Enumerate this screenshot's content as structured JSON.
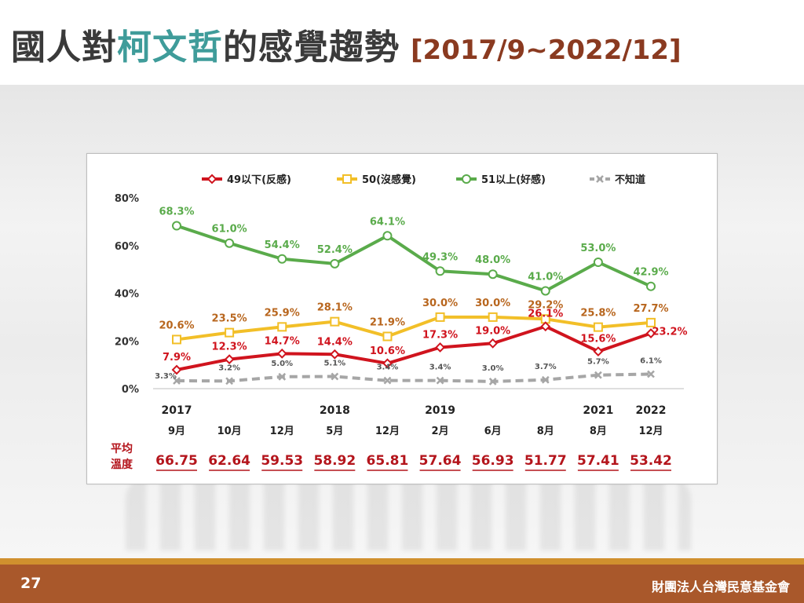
{
  "header": {
    "title_part1": "國人對",
    "title_highlight": "柯文哲",
    "title_part2": "的感覺趨勢",
    "date_range": "[2017/9~2022/12]"
  },
  "footer": {
    "page_number": "27",
    "organization": "財團法人台灣民意基金會"
  },
  "colors": {
    "negative": "#d0141e",
    "neutral": "#f2bf28",
    "positive": "#5aab4b",
    "unknown": "#a6a6a6",
    "neutral_label": "#b8661e",
    "temperature": "#b4151c",
    "title_highlight": "#3f9c9a"
  },
  "chart_data": {
    "type": "line",
    "ylim": [
      0,
      80
    ],
    "yticks": [
      "0%",
      "20%",
      "40%",
      "60%",
      "80%"
    ],
    "ytick_values": [
      0,
      20,
      40,
      60,
      80
    ],
    "year_labels": [
      "2017",
      "",
      "",
      "2018",
      "",
      "2019",
      "",
      "",
      "2021",
      "2022"
    ],
    "month_labels": [
      "9月",
      "10月",
      "12月",
      "5月",
      "12月",
      "2月",
      "6月",
      "8月",
      "8月",
      "12月"
    ],
    "series": [
      {
        "name": "49以下(反感)",
        "key": "negative",
        "marker": "diamond",
        "values": [
          7.9,
          12.3,
          14.7,
          14.4,
          10.6,
          17.3,
          19.0,
          26.1,
          15.6,
          23.2
        ],
        "labels": [
          "7.9%",
          "12.3%",
          "14.7%",
          "14.4%",
          "10.6%",
          "17.3%",
          "19.0%",
          "26.1%",
          "15.6%",
          "23.2%"
        ]
      },
      {
        "name": "50(沒感覺)",
        "key": "neutral",
        "marker": "square",
        "values": [
          20.6,
          23.5,
          25.9,
          28.1,
          21.9,
          30.0,
          30.0,
          29.2,
          25.8,
          27.7
        ],
        "labels": [
          "20.6%",
          "23.5%",
          "25.9%",
          "28.1%",
          "21.9%",
          "30.0%",
          "30.0%",
          "29.2%",
          "25.8%",
          "27.7%"
        ]
      },
      {
        "name": "51以上(好感)",
        "key": "positive",
        "marker": "circle",
        "values": [
          68.3,
          61.0,
          54.4,
          52.4,
          64.1,
          49.3,
          48.0,
          41.0,
          53.0,
          42.9
        ],
        "labels": [
          "68.3%",
          "61.0%",
          "54.4%",
          "52.4%",
          "64.1%",
          "49.3%",
          "48.0%",
          "41.0%",
          "53.0%",
          "42.9%"
        ]
      },
      {
        "name": "不知道",
        "key": "unknown",
        "marker": "x",
        "dashed": true,
        "values": [
          3.3,
          3.2,
          5.0,
          5.1,
          3.4,
          3.4,
          3.0,
          3.7,
          5.7,
          6.1
        ],
        "labels": [
          "3.3%",
          "3.2%",
          "5.0%",
          "5.1%",
          "3.4%",
          "3.4%",
          "3.0%",
          "3.7%",
          "5.7%",
          "6.1%"
        ]
      }
    ],
    "temperature_label_line1": "平均",
    "temperature_label_line2": "溫度",
    "temperature_values": [
      "66.75",
      "62.64",
      "59.53",
      "58.92",
      "65.81",
      "57.64",
      "56.93",
      "51.77",
      "57.41",
      "53.42"
    ]
  }
}
